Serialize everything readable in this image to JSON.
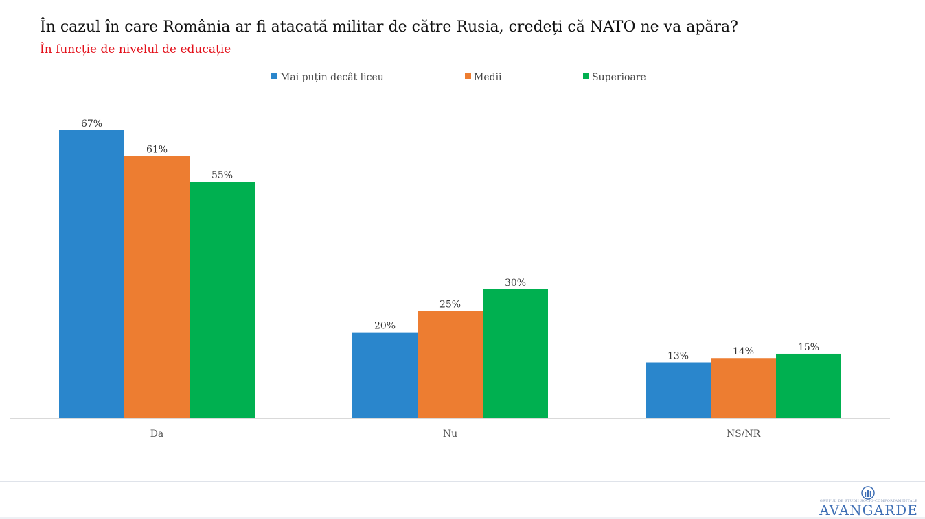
{
  "header": {
    "title": "În cazul în care România ar fi atacată militar de către Rusia, credeți că NATO ne va apăra?",
    "subtitle": "În funcție de nivelul de educație"
  },
  "chart_data": {
    "type": "bar",
    "title": "În cazul în care România ar fi atacată militar de către Rusia, credeți că NATO ne va apăra?",
    "subtitle": "În funcție de nivelul de educație",
    "categories": [
      "Da",
      "Nu",
      "NS/NR"
    ],
    "series": [
      {
        "name": "Mai puțin decât liceu",
        "color": "#2a86cc",
        "values": [
          67,
          20,
          13
        ],
        "labels": [
          "67%",
          "20%",
          "13%"
        ]
      },
      {
        "name": "Medii",
        "color": "#ed7d31",
        "values": [
          61,
          25,
          14
        ],
        "labels": [
          "61%",
          "25%",
          "14%"
        ]
      },
      {
        "name": "Superioare",
        "color": "#00b050",
        "values": [
          55,
          30,
          15
        ],
        "labels": [
          "55%",
          "30%",
          "15%"
        ]
      }
    ],
    "ylim": [
      0,
      70
    ],
    "grid": false,
    "legend_position": "top",
    "xlabel": "",
    "ylabel": ""
  },
  "footer": {
    "logo_name": "AVANGARDE",
    "logo_tagline": "GRUPUL DE STUDII SOCIO-COMPORTAMENTALE"
  }
}
